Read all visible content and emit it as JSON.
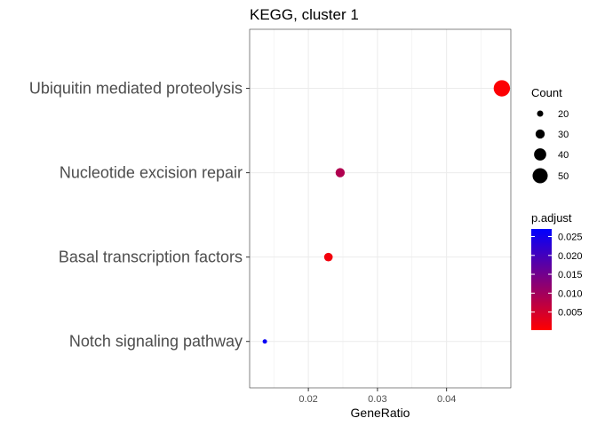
{
  "chart_data": {
    "type": "scatter",
    "title": "KEGG, cluster 1",
    "xlabel": "GeneRatio",
    "ylabel": "",
    "xlim": [
      0.0115,
      0.0493
    ],
    "x_ticks": [
      0.02,
      0.03,
      0.04
    ],
    "x_tick_labels": [
      "0.02",
      "0.03",
      "0.04"
    ],
    "categories": [
      "Ubiquitin mediated proteolysis",
      "Nucleotide excision repair",
      "Basal transcription factors",
      "Notch signaling pathway"
    ],
    "points": [
      {
        "category": "Ubiquitin mediated proteolysis",
        "gene_ratio": 0.048,
        "count": 54,
        "p_adjust": 0.0005
      },
      {
        "category": "Nucleotide excision repair",
        "gene_ratio": 0.0246,
        "count": 30,
        "p_adjust": 0.0085
      },
      {
        "category": "Basal transcription factors",
        "gene_ratio": 0.0229,
        "count": 28,
        "p_adjust": 0.0015
      },
      {
        "category": "Notch signaling pathway",
        "gene_ratio": 0.0137,
        "count": 14,
        "p_adjust": 0.026
      }
    ],
    "grid": true,
    "legend_position": "right",
    "size_legend": {
      "title": "Count",
      "values": [
        20,
        30,
        40,
        50
      ],
      "labels": [
        "20",
        "30",
        "40",
        "50"
      ]
    },
    "color_legend": {
      "title": "p.adjust",
      "range": [
        0.0002,
        0.027
      ],
      "ticks": [
        0.005,
        0.01,
        0.015,
        0.02,
        0.025
      ],
      "labels": [
        "0.005",
        "0.010",
        "0.015",
        "0.020",
        "0.025"
      ],
      "low_color": "#ff0000",
      "high_color": "#0000ff"
    },
    "colors": {
      "grid": "#ebebeb",
      "panel_border": "#333333",
      "text": "#4d4d4d",
      "title": "#000000"
    }
  }
}
